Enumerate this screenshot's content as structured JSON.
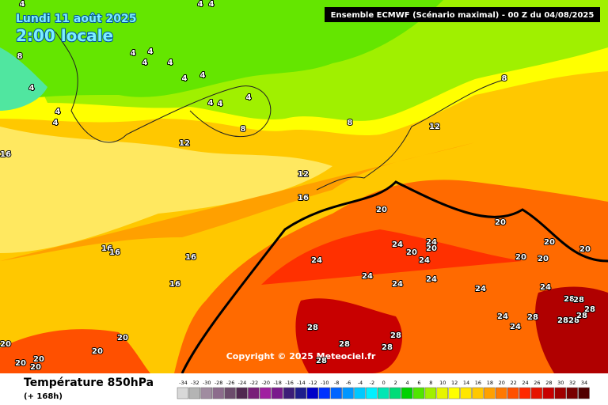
{
  "header": {
    "date": "Lundi 11 août 2025",
    "time": "2:00 locale",
    "model": "Ensemble ECMWF  (Scénario maximal) - 00 Z du 04/08/2025"
  },
  "copyright": "Copyright © 2025 Meteociel.fr",
  "footer": {
    "title": "Température 850hPa",
    "lead": "(+ 168h)"
  },
  "scale": {
    "values": [
      -34,
      -32,
      -30,
      -28,
      -26,
      -24,
      -22,
      -20,
      -18,
      -16,
      -14,
      -12,
      -10,
      -8,
      -6,
      -4,
      -2,
      0,
      2,
      4,
      6,
      8,
      10,
      12,
      14,
      16,
      18,
      20,
      22,
      24,
      26,
      28,
      30,
      32,
      34
    ],
    "colors": [
      "#d8d8d8",
      "#b4b4b4",
      "#a08ca0",
      "#8c6c8c",
      "#6c4c6c",
      "#502850",
      "#781e78",
      "#a020a0",
      "#7a1a8c",
      "#3c1e78",
      "#1e1e8c",
      "#0000c8",
      "#0032ff",
      "#0064ff",
      "#0096ff",
      "#00c8ff",
      "#00f0ff",
      "#00e6b4",
      "#00dc78",
      "#00d200",
      "#50e600",
      "#a0f000",
      "#e6f500",
      "#ffff00",
      "#ffe600",
      "#ffc800",
      "#ffa000",
      "#ff7800",
      "#ff5000",
      "#ff2800",
      "#e61400",
      "#c80000",
      "#a00000",
      "#780000",
      "#500000"
    ]
  },
  "contour_labels": [
    4,
    4,
    4,
    4,
    4,
    4,
    4,
    4,
    4,
    4,
    4,
    4,
    4,
    4,
    4,
    8,
    8,
    8,
    8,
    12,
    12,
    12,
    16,
    16,
    16,
    16,
    16,
    16,
    20,
    20,
    20,
    20,
    20,
    20,
    20,
    20,
    20,
    20,
    20,
    20,
    20,
    20,
    24,
    24,
    24,
    24,
    24,
    24,
    24,
    24,
    24,
    24,
    24,
    28,
    28,
    28,
    28,
    28,
    28,
    28,
    28,
    28,
    28,
    28,
    28
  ]
}
